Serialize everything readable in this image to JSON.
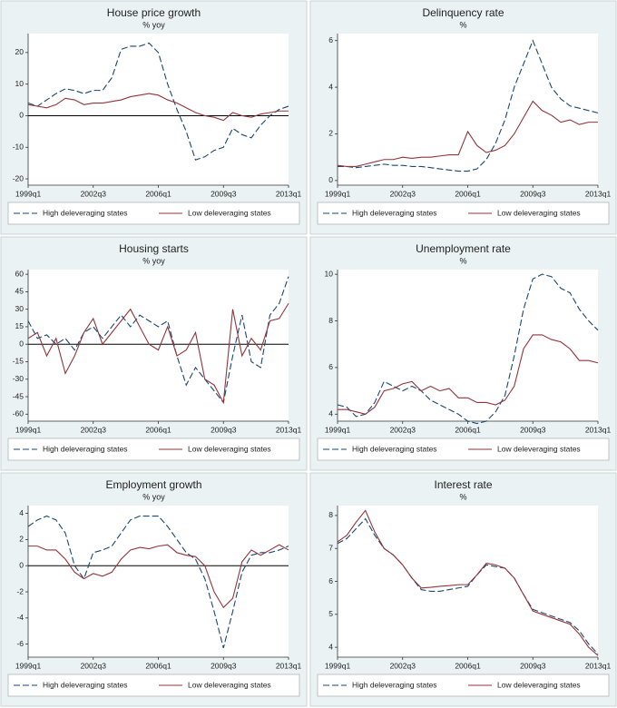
{
  "chart_data": [
    {
      "type": "line",
      "title": "House price growth",
      "subtitle": "% yoy",
      "x": [
        1999,
        1999.5,
        2000,
        2000.5,
        2001,
        2001.5,
        2002,
        2002.5,
        2003,
        2003.5,
        2004,
        2004.5,
        2005,
        2005.5,
        2006,
        2006.5,
        2007,
        2007.5,
        2008,
        2008.5,
        2009,
        2009.5,
        2010,
        2010.5,
        2011,
        2011.5,
        2012,
        2012.5,
        2013
      ],
      "series": [
        {
          "name": "High deleveraging states",
          "color": "#1a476f",
          "style": "dashed",
          "values": [
            4,
            3,
            5,
            7,
            8.5,
            8,
            7,
            8,
            8,
            12,
            21,
            22,
            22,
            23,
            20,
            10,
            2,
            -5,
            -14,
            -13,
            -11,
            -10,
            -4,
            -6,
            -7,
            -3,
            0,
            2,
            3
          ]
        },
        {
          "name": "Low deleveraging states",
          "color": "#90353b",
          "style": "solid",
          "values": [
            3.5,
            3,
            2.5,
            3.5,
            5.5,
            5,
            3.5,
            4,
            4,
            4.5,
            5,
            6,
            6.5,
            7,
            6.5,
            5,
            4,
            2.5,
            1,
            0,
            -0.5,
            -1.5,
            1,
            0,
            -0.5,
            0.5,
            1,
            1.5,
            1.5
          ]
        }
      ],
      "xlim": [
        1999,
        2013
      ],
      "xticks": [
        {
          "value": 1999,
          "label": "1999q1"
        },
        {
          "value": 2002.5,
          "label": "2002q3"
        },
        {
          "value": 2006,
          "label": "2006q1"
        },
        {
          "value": 2009.5,
          "label": "2009q3"
        },
        {
          "value": 2013,
          "label": "2013q1"
        }
      ],
      "ylim": [
        -22,
        26
      ],
      "yticks": [
        -20,
        -10,
        0,
        10,
        20
      ],
      "hline": 0
    },
    {
      "type": "line",
      "title": "Delinquency rate",
      "subtitle": "%",
      "x": [
        1999,
        1999.5,
        2000,
        2000.5,
        2001,
        2001.5,
        2002,
        2002.5,
        2003,
        2003.5,
        2004,
        2004.5,
        2005,
        2005.5,
        2006,
        2006.5,
        2007,
        2007.5,
        2008,
        2008.5,
        2009,
        2009.5,
        2010,
        2010.5,
        2011,
        2011.5,
        2012,
        2012.5,
        2013
      ],
      "series": [
        {
          "name": "High deleveraging states",
          "color": "#1a476f",
          "style": "dashed",
          "values": [
            0.6,
            0.6,
            0.55,
            0.6,
            0.65,
            0.7,
            0.65,
            0.65,
            0.6,
            0.6,
            0.55,
            0.5,
            0.45,
            0.4,
            0.4,
            0.5,
            0.9,
            1.6,
            2.6,
            4.0,
            5.0,
            6.0,
            5.0,
            4.0,
            3.5,
            3.2,
            3.1,
            3.0,
            2.9
          ]
        },
        {
          "name": "Low deleveraging states",
          "color": "#90353b",
          "style": "solid",
          "values": [
            0.65,
            0.6,
            0.6,
            0.7,
            0.8,
            0.9,
            0.9,
            1.0,
            0.95,
            1.0,
            1.0,
            1.05,
            1.1,
            1.1,
            2.1,
            1.5,
            1.2,
            1.3,
            1.5,
            2.0,
            2.7,
            3.4,
            3.0,
            2.8,
            2.5,
            2.6,
            2.4,
            2.5,
            2.5
          ]
        }
      ],
      "xlim": [
        1999,
        2013
      ],
      "xticks": [
        {
          "value": 1999,
          "label": "1999q1"
        },
        {
          "value": 2002.5,
          "label": "2002q3"
        },
        {
          "value": 2006,
          "label": "2006q1"
        },
        {
          "value": 2009.5,
          "label": "2009q3"
        },
        {
          "value": 2013,
          "label": "2013q1"
        }
      ],
      "ylim": [
        -0.2,
        6.3
      ],
      "yticks": [
        0,
        2,
        4,
        6
      ]
    },
    {
      "type": "line",
      "title": "Housing starts",
      "subtitle": "% yoy",
      "x": [
        1999,
        1999.5,
        2000,
        2000.5,
        2001,
        2001.5,
        2002,
        2002.5,
        2003,
        2003.5,
        2004,
        2004.5,
        2005,
        2005.5,
        2006,
        2006.5,
        2007,
        2007.5,
        2008,
        2008.5,
        2009,
        2009.5,
        2010,
        2010.5,
        2011,
        2011.5,
        2012,
        2012.5,
        2013
      ],
      "series": [
        {
          "name": "High deleveraging states",
          "color": "#1a476f",
          "style": "dashed",
          "values": [
            20,
            5,
            8,
            0,
            5,
            -5,
            10,
            15,
            5,
            15,
            25,
            15,
            25,
            20,
            15,
            20,
            -10,
            -35,
            -20,
            -30,
            -40,
            -50,
            -10,
            25,
            -15,
            -20,
            25,
            35,
            58
          ]
        },
        {
          "name": "Low deleveraging states",
          "color": "#90353b",
          "style": "solid",
          "values": [
            5,
            10,
            -10,
            5,
            -25,
            -10,
            10,
            22,
            0,
            10,
            20,
            30,
            15,
            0,
            -5,
            15,
            -10,
            -5,
            10,
            -30,
            -35,
            -50,
            30,
            -10,
            5,
            -5,
            20,
            22,
            35
          ]
        }
      ],
      "xlim": [
        1999,
        2013
      ],
      "xticks": [
        {
          "value": 1999,
          "label": "1999q1"
        },
        {
          "value": 2002.5,
          "label": "2002q3"
        },
        {
          "value": 2006,
          "label": "2006q1"
        },
        {
          "value": 2009.5,
          "label": "2009q3"
        },
        {
          "value": 2013,
          "label": "2013q1"
        }
      ],
      "ylim": [
        -66,
        64
      ],
      "yticks": [
        -60,
        -45,
        -30,
        -15,
        0,
        15,
        30,
        45,
        60
      ],
      "hline": 0
    },
    {
      "type": "line",
      "title": "Unemployment rate",
      "subtitle": "%",
      "x": [
        1999,
        1999.5,
        2000,
        2000.5,
        2001,
        2001.5,
        2002,
        2002.5,
        2003,
        2003.5,
        2004,
        2004.5,
        2005,
        2005.5,
        2006,
        2006.5,
        2007,
        2007.5,
        2008,
        2008.5,
        2009,
        2009.5,
        2010,
        2010.5,
        2011,
        2011.5,
        2012,
        2012.5,
        2013
      ],
      "series": [
        {
          "name": "High deleveraging states",
          "color": "#1a476f",
          "style": "dashed",
          "values": [
            4.4,
            4.3,
            3.9,
            4.0,
            4.5,
            5.4,
            5.2,
            5.0,
            5.2,
            5.0,
            4.6,
            4.4,
            4.2,
            4.0,
            3.7,
            3.6,
            3.7,
            4.1,
            4.8,
            6.5,
            8.5,
            9.8,
            10.0,
            9.9,
            9.4,
            9.2,
            8.5,
            8.0,
            7.6
          ]
        },
        {
          "name": "Low deleveraging states",
          "color": "#90353b",
          "style": "solid",
          "values": [
            4.2,
            4.2,
            4.1,
            4.0,
            4.3,
            5.0,
            5.1,
            5.3,
            5.4,
            5.0,
            5.2,
            5.0,
            5.1,
            4.7,
            4.7,
            4.5,
            4.5,
            4.4,
            4.6,
            5.2,
            6.8,
            7.4,
            7.4,
            7.2,
            7.1,
            6.8,
            6.3,
            6.3,
            6.2
          ]
        }
      ],
      "xlim": [
        1999,
        2013
      ],
      "xticks": [
        {
          "value": 1999,
          "label": "1999q1"
        },
        {
          "value": 2002.5,
          "label": "2002q3"
        },
        {
          "value": 2006,
          "label": "2006q1"
        },
        {
          "value": 2009.5,
          "label": "2009q3"
        },
        {
          "value": 2013,
          "label": "2013q1"
        }
      ],
      "ylim": [
        3.7,
        10.2
      ],
      "yticks": [
        4,
        6,
        8,
        10
      ]
    },
    {
      "type": "line",
      "title": "Employment growth",
      "subtitle": "% yoy",
      "x": [
        1999,
        1999.5,
        2000,
        2000.5,
        2001,
        2001.5,
        2002,
        2002.5,
        2003,
        2003.5,
        2004,
        2004.5,
        2005,
        2005.5,
        2006,
        2006.5,
        2007,
        2007.5,
        2008,
        2008.5,
        2009,
        2009.5,
        2010,
        2010.5,
        2011,
        2011.5,
        2012,
        2012.5,
        2013
      ],
      "series": [
        {
          "name": "High deleveraging states",
          "color": "#1a476f",
          "style": "dashed",
          "values": [
            3.0,
            3.5,
            3.8,
            3.5,
            2.5,
            0,
            -1.0,
            1.0,
            1.2,
            1.5,
            2.5,
            3.5,
            3.8,
            3.8,
            3.8,
            3.0,
            2.0,
            1.0,
            0.5,
            -1.0,
            -3.5,
            -6.3,
            -3.5,
            -0.5,
            0.8,
            1.0,
            1.0,
            1.2,
            1.5
          ]
        },
        {
          "name": "Low deleveraging states",
          "color": "#90353b",
          "style": "solid",
          "values": [
            1.5,
            1.5,
            1.2,
            1.2,
            0.5,
            -0.5,
            -1.0,
            -0.6,
            -0.8,
            -0.5,
            0.5,
            1.2,
            1.4,
            1.3,
            1.5,
            1.6,
            1.0,
            0.8,
            0.7,
            0,
            -2.0,
            -3.2,
            -2.5,
            0.3,
            1.2,
            0.8,
            1.2,
            1.6,
            1.2
          ]
        }
      ],
      "xlim": [
        1999,
        2013
      ],
      "xticks": [
        {
          "value": 1999,
          "label": "1999q1"
        },
        {
          "value": 2002.5,
          "label": "2002q3"
        },
        {
          "value": 2006,
          "label": "2006q1"
        },
        {
          "value": 2009.5,
          "label": "2009q3"
        },
        {
          "value": 2013,
          "label": "2013q1"
        }
      ],
      "ylim": [
        -7,
        4.6
      ],
      "yticks": [
        -6,
        -4,
        -2,
        0,
        2,
        4
      ],
      "hline": 0
    },
    {
      "type": "line",
      "title": "Interest rate",
      "subtitle": "%",
      "x": [
        1999,
        1999.5,
        2000,
        2000.5,
        2001,
        2001.5,
        2002,
        2002.5,
        2003,
        2003.5,
        2004,
        2004.5,
        2005,
        2005.5,
        2006,
        2006.5,
        2007,
        2007.5,
        2008,
        2008.5,
        2009,
        2009.5,
        2010,
        2010.5,
        2011,
        2011.5,
        2012,
        2012.5,
        2013
      ],
      "series": [
        {
          "name": "High deleveraging states",
          "color": "#1a476f",
          "style": "dashed",
          "values": [
            7.15,
            7.3,
            7.6,
            7.9,
            7.4,
            7.0,
            6.8,
            6.5,
            6.1,
            5.75,
            5.7,
            5.7,
            5.75,
            5.8,
            5.85,
            6.2,
            6.5,
            6.45,
            6.4,
            6.1,
            5.6,
            5.15,
            5.05,
            4.95,
            4.85,
            4.75,
            4.5,
            4.1,
            3.8
          ]
        },
        {
          "name": "Low deleveraging states",
          "color": "#90353b",
          "style": "solid",
          "values": [
            7.2,
            7.4,
            7.8,
            8.15,
            7.5,
            7.0,
            6.8,
            6.5,
            6.1,
            5.8,
            5.82,
            5.85,
            5.87,
            5.9,
            5.9,
            6.2,
            6.55,
            6.5,
            6.4,
            6.1,
            5.6,
            5.1,
            5.0,
            4.9,
            4.8,
            4.7,
            4.4,
            4.0,
            3.75
          ]
        }
      ],
      "xlim": [
        1999,
        2013
      ],
      "xticks": [
        {
          "value": 1999,
          "label": "1999q1"
        },
        {
          "value": 2002.5,
          "label": "2002q3"
        },
        {
          "value": 2006,
          "label": "2006q1"
        },
        {
          "value": 2009.5,
          "label": "2009q3"
        },
        {
          "value": 2013,
          "label": "2013q1"
        }
      ],
      "ylim": [
        3.7,
        8.3
      ],
      "yticks": [
        4,
        5,
        6,
        7,
        8
      ]
    }
  ]
}
